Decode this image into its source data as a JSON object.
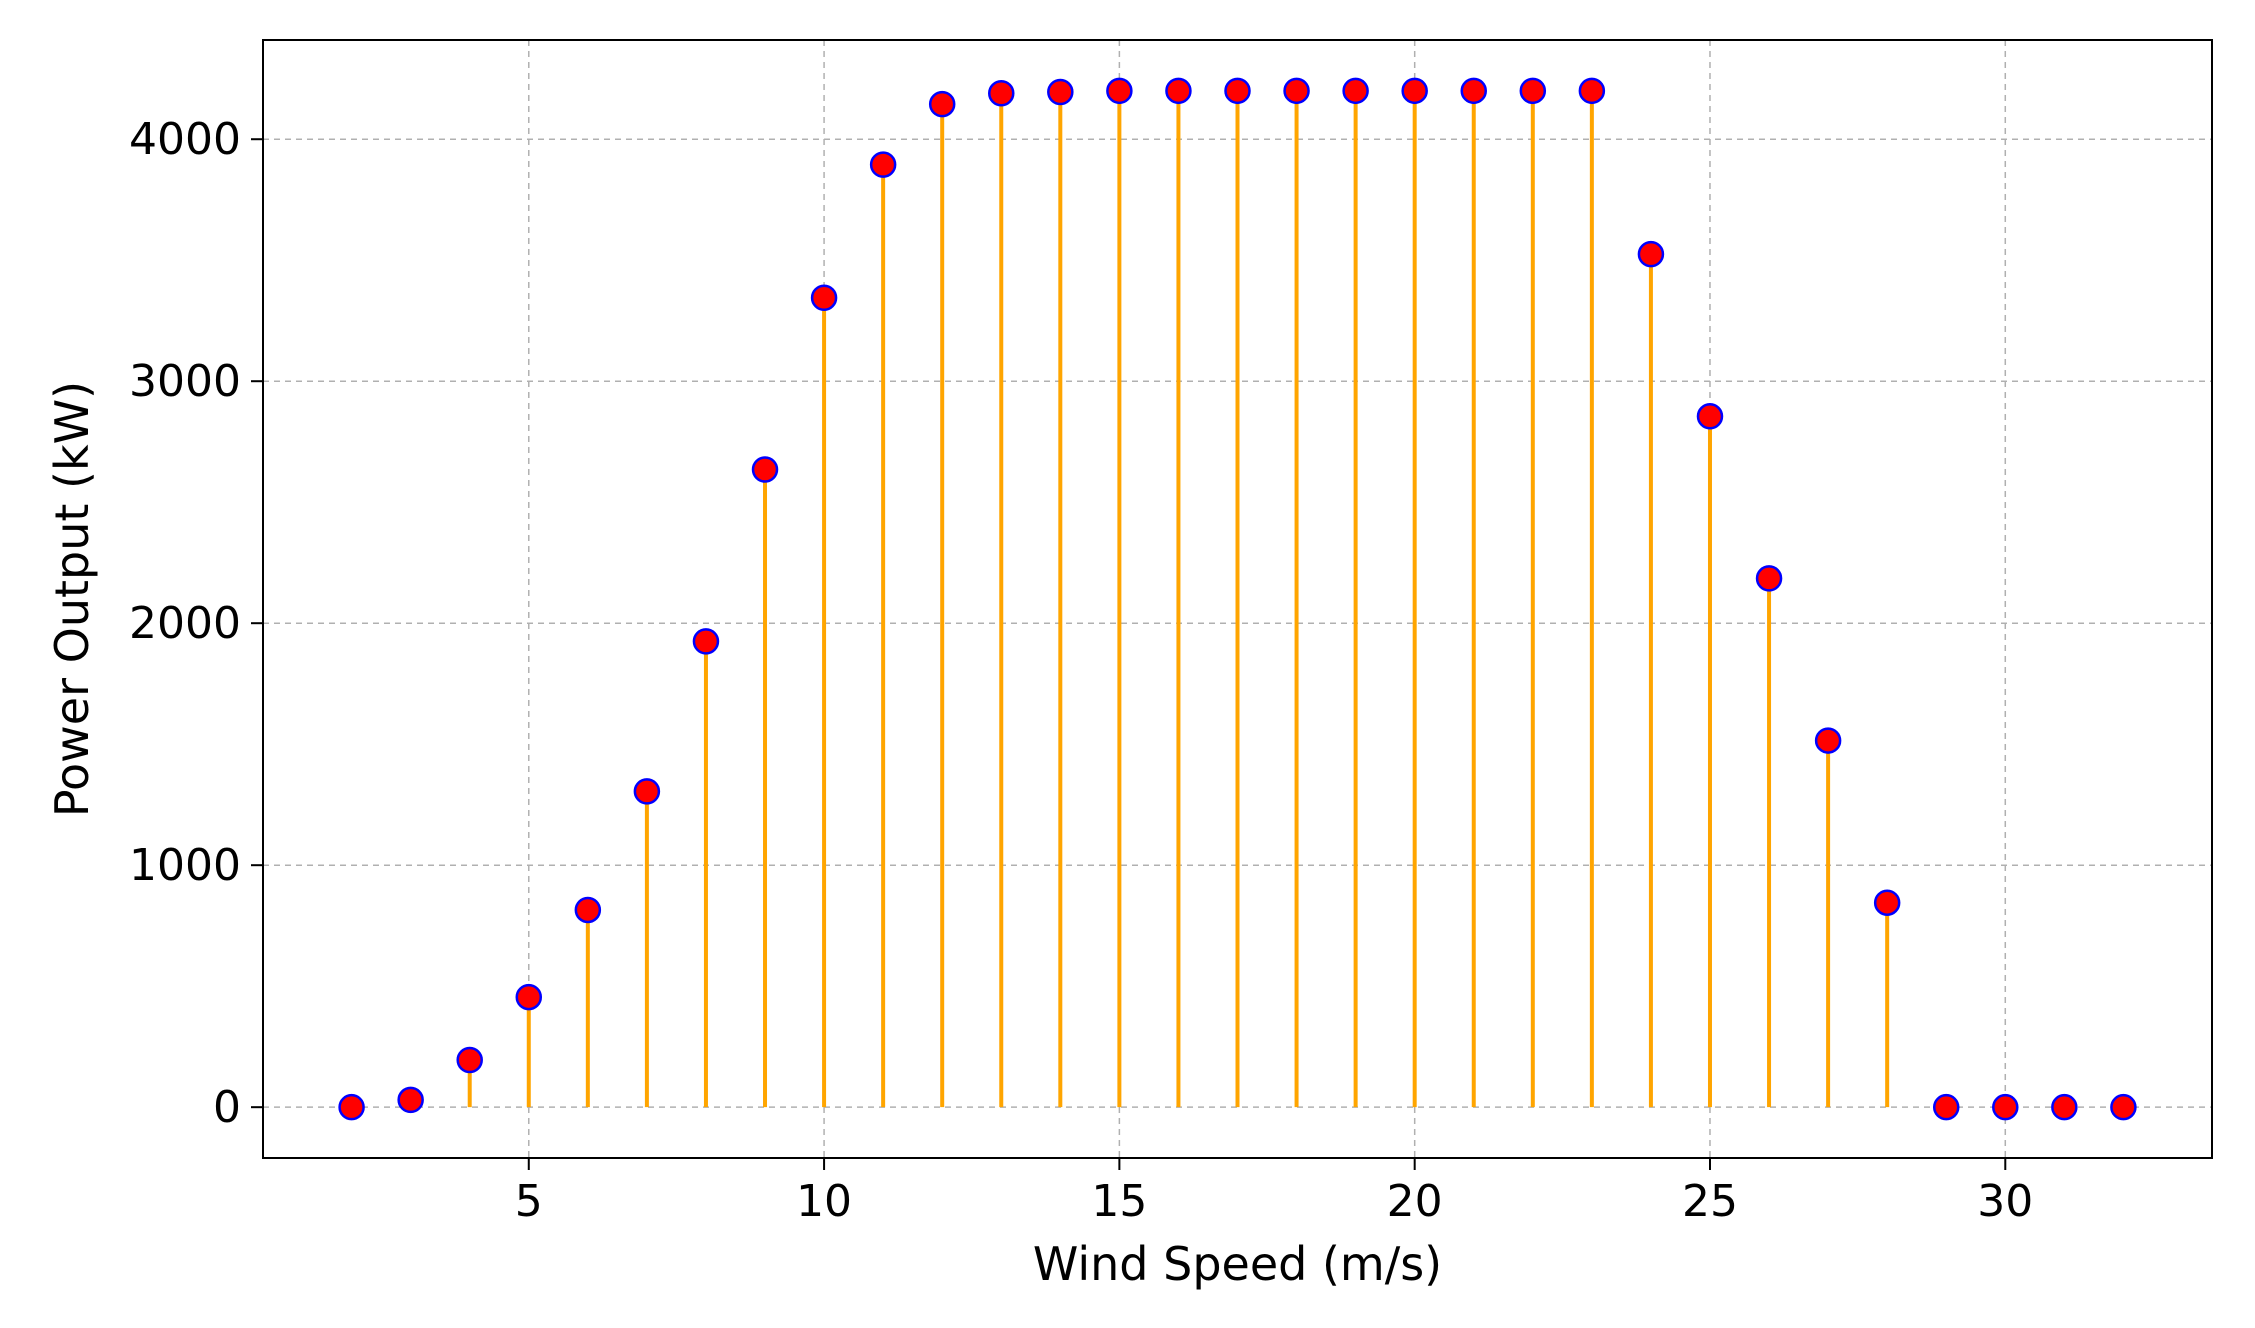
{
  "chart_data": {
    "type": "stem",
    "title": "",
    "xlabel": "Wind Speed (m/s)",
    "ylabel": "Power Output (kW)",
    "xlim": [
      0.5,
      33.5
    ],
    "ylim": [
      -210,
      4410
    ],
    "xticks": [
      5,
      10,
      15,
      20,
      25,
      30
    ],
    "yticks": [
      0,
      1000,
      2000,
      3000,
      4000
    ],
    "grid": true,
    "legend": "none",
    "colors": {
      "stem": "#FFA500",
      "marker_fill": "#FF0000",
      "marker_edge": "#0000FF",
      "grid": "#b0b0b0",
      "axes": "#000000"
    },
    "x": [
      2,
      3,
      4,
      5,
      6,
      7,
      8,
      9,
      10,
      11,
      12,
      13,
      14,
      15,
      16,
      17,
      18,
      19,
      20,
      21,
      22,
      23,
      24,
      25,
      26,
      27,
      28,
      29,
      30,
      31,
      32
    ],
    "y": [
      0,
      30,
      195,
      455,
      815,
      1305,
      1925,
      2635,
      3345,
      3895,
      4145,
      4190,
      4195,
      4200,
      4200,
      4200,
      4200,
      4200,
      4200,
      4200,
      4200,
      4200,
      3525,
      2855,
      2185,
      1515,
      845,
      0,
      0,
      0,
      0
    ]
  }
}
